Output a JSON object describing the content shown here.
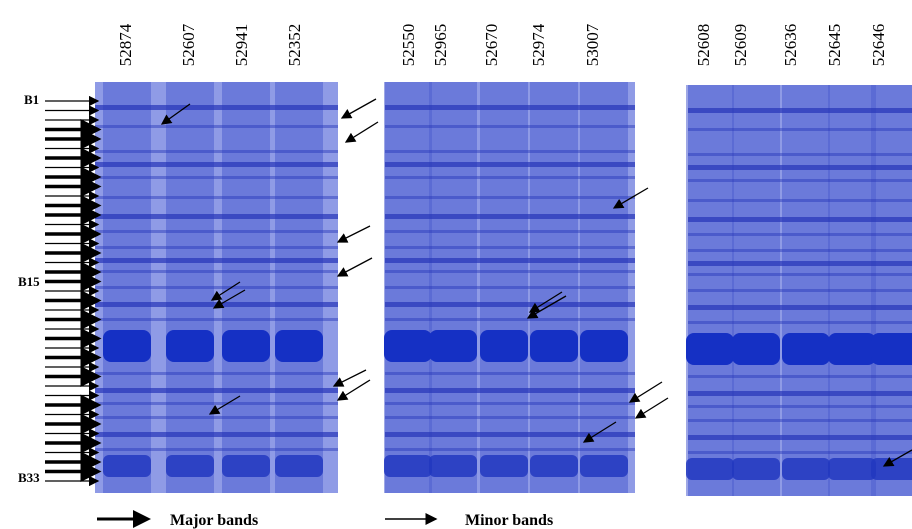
{
  "panels": [
    {
      "lanes": [
        "52874",
        "52607",
        "52941",
        "52352"
      ]
    },
    {
      "lanes": [
        "52550",
        "52965",
        "52670",
        "52974",
        "53007"
      ]
    },
    {
      "lanes": [
        "52608",
        "52609",
        "52636",
        "52645",
        "52646"
      ]
    }
  ],
  "band_labels": [
    "B1",
    "B15",
    "B33"
  ],
  "legend": {
    "major": "Major bands",
    "minor": "Minor bands"
  }
}
